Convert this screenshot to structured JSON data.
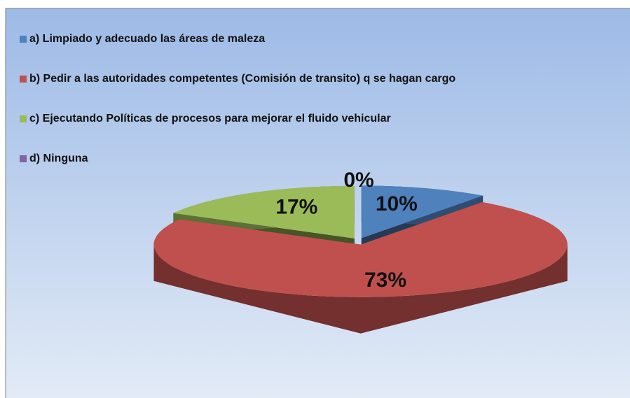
{
  "chart_data": {
    "type": "pie",
    "categories": [
      "a) Limpiado y adecuado  las áreas de maleza",
      "b) Pedir a las autoridades competentes (Comisión de transito) q se hagan cargo",
      "c) Ejecutando  Políticas de procesos para mejorar el fluido vehicular",
      "d) Ninguna"
    ],
    "values": [
      10,
      73,
      17,
      0
    ],
    "value_labels": [
      "10%",
      "73%",
      "17%",
      "0%"
    ],
    "colors": [
      "#4f81bd",
      "#c0504d",
      "#9bbb59",
      "#8064a2"
    ],
    "legend": "top-left"
  }
}
